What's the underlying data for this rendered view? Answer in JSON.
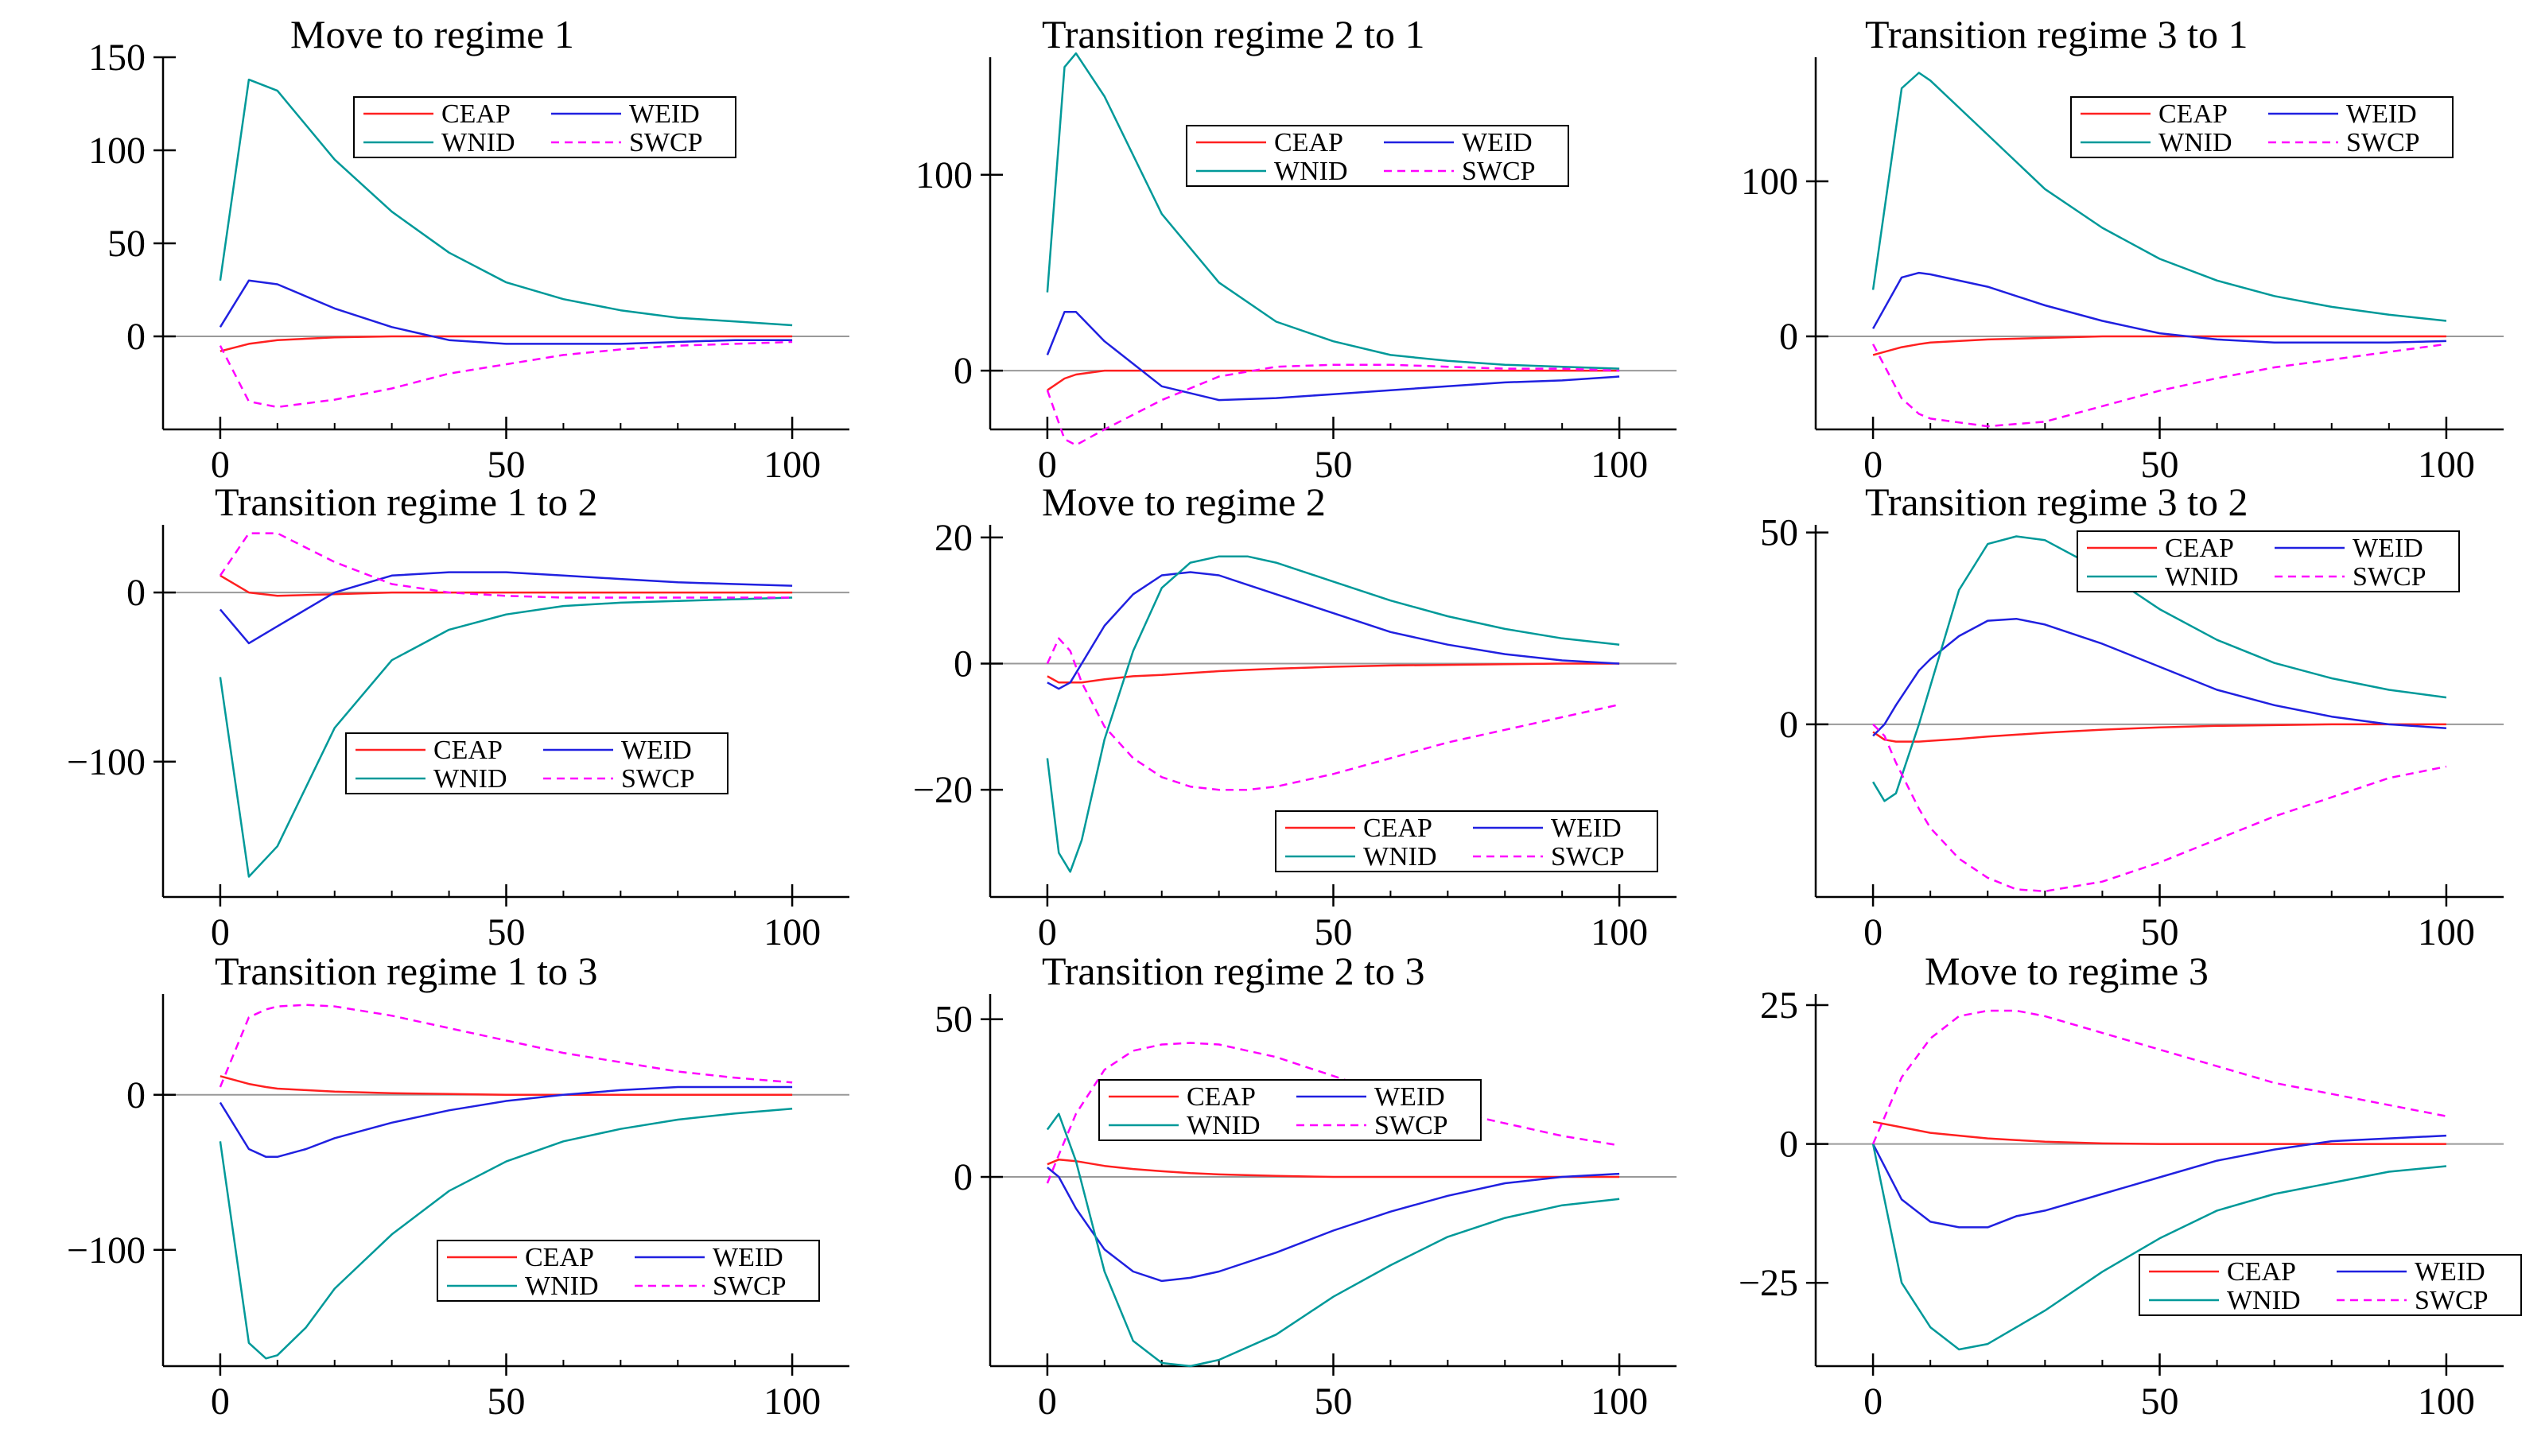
{
  "figure": {
    "description_title": "",
    "series_styles": [
      {
        "name": "CEAP",
        "color": "#ff2020",
        "dash": "solid"
      },
      {
        "name": "WEID",
        "color": "#2020e0",
        "dash": "solid"
      },
      {
        "name": "WNID",
        "color": "#009999",
        "dash": "solid"
      },
      {
        "name": "SWCP",
        "color": "#ff00ff",
        "dash": "dashed"
      }
    ]
  },
  "chart_data": [
    {
      "type": "line",
      "title": "Move to regime 1",
      "xlabel": "",
      "ylabel": "",
      "xlim": [
        -10,
        110
      ],
      "ylim": [
        -50,
        150
      ],
      "xticks": [
        0,
        50,
        100
      ],
      "yticks": [
        150,
        100,
        50,
        0
      ],
      "legend": "top-right",
      "x": [
        0,
        5,
        10,
        20,
        30,
        40,
        50,
        60,
        70,
        80,
        90,
        100
      ],
      "series": [
        {
          "name": "CEAP",
          "values": [
            -8,
            -4,
            -2,
            -0.5,
            0,
            0,
            0,
            0,
            0,
            0,
            0,
            0
          ]
        },
        {
          "name": "WEID",
          "values": [
            5,
            30,
            28,
            15,
            5,
            -2,
            -4,
            -4,
            -4,
            -3,
            -2,
            -2
          ]
        },
        {
          "name": "WNID",
          "values": [
            30,
            138,
            132,
            95,
            67,
            45,
            29,
            20,
            14,
            10,
            8,
            6
          ]
        },
        {
          "name": "SWCP",
          "values": [
            -5,
            -35,
            -38,
            -34,
            -28,
            -20,
            -15,
            -10,
            -7,
            -5,
            -4,
            -3
          ]
        }
      ]
    },
    {
      "type": "line",
      "title": "Transition regime 2 to 1",
      "xlabel": "",
      "ylabel": "",
      "xlim": [
        -10,
        110
      ],
      "ylim": [
        -30,
        160
      ],
      "xticks": [
        0,
        50,
        100
      ],
      "yticks": [
        100,
        0
      ],
      "legend": "top-right",
      "x": [
        0,
        3,
        5,
        10,
        20,
        30,
        40,
        50,
        60,
        70,
        80,
        90,
        100
      ],
      "series": [
        {
          "name": "CEAP",
          "values": [
            -10,
            -4,
            -2,
            0,
            0,
            0,
            0,
            0,
            0,
            0,
            0,
            0,
            0
          ]
        },
        {
          "name": "WEID",
          "values": [
            8,
            30,
            30,
            15,
            -8,
            -15,
            -14,
            -12,
            -10,
            -8,
            -6,
            -5,
            -3
          ]
        },
        {
          "name": "WNID",
          "values": [
            40,
            155,
            162,
            140,
            80,
            45,
            25,
            15,
            8,
            5,
            3,
            2,
            1
          ]
        },
        {
          "name": "SWCP",
          "values": [
            -10,
            -35,
            -38,
            -30,
            -15,
            -3,
            2,
            3,
            3,
            2,
            1,
            1,
            0
          ]
        }
      ]
    },
    {
      "type": "line",
      "title": "Transition regime 3 to 1",
      "xlabel": "",
      "ylabel": "",
      "xlim": [
        -10,
        110
      ],
      "ylim": [
        -60,
        180
      ],
      "xticks": [
        0,
        50,
        100
      ],
      "yticks": [
        100,
        0
      ],
      "legend": "top-right",
      "x": [
        0,
        5,
        8,
        10,
        20,
        30,
        40,
        50,
        60,
        70,
        80,
        90,
        100
      ],
      "series": [
        {
          "name": "CEAP",
          "values": [
            -12,
            -7,
            -5,
            -4,
            -2,
            -1,
            0,
            0,
            0,
            0,
            0,
            0,
            0
          ]
        },
        {
          "name": "WEID",
          "values": [
            5,
            38,
            41,
            40,
            32,
            20,
            10,
            2,
            -2,
            -4,
            -4,
            -4,
            -3
          ]
        },
        {
          "name": "WNID",
          "values": [
            30,
            160,
            170,
            165,
            130,
            95,
            70,
            50,
            36,
            26,
            19,
            14,
            10
          ]
        },
        {
          "name": "SWCP",
          "values": [
            -5,
            -40,
            -50,
            -53,
            -58,
            -55,
            -45,
            -35,
            -27,
            -20,
            -15,
            -10,
            -5
          ]
        }
      ]
    },
    {
      "type": "line",
      "title": "Transition regime 1 to 2",
      "xlabel": "",
      "ylabel": "",
      "xlim": [
        -10,
        110
      ],
      "ylim": [
        -180,
        40
      ],
      "xticks": [
        0,
        50,
        100
      ],
      "yticks": [
        0,
        -100
      ],
      "legend": "bottom-right",
      "x": [
        0,
        5,
        10,
        20,
        30,
        40,
        50,
        60,
        70,
        80,
        90,
        100
      ],
      "series": [
        {
          "name": "CEAP",
          "values": [
            10,
            0,
            -2,
            -1,
            0,
            0,
            0,
            0,
            0,
            0,
            0,
            0
          ]
        },
        {
          "name": "WEID",
          "values": [
            -10,
            -30,
            -20,
            0,
            10,
            12,
            12,
            10,
            8,
            6,
            5,
            4
          ]
        },
        {
          "name": "WNID",
          "values": [
            -50,
            -168,
            -150,
            -80,
            -40,
            -22,
            -13,
            -8,
            -6,
            -5,
            -4,
            -3
          ]
        },
        {
          "name": "SWCP",
          "values": [
            10,
            35,
            35,
            18,
            5,
            0,
            -2,
            -3,
            -3,
            -3,
            -3,
            -3
          ]
        }
      ]
    },
    {
      "type": "line",
      "title": "Move to regime 2",
      "xlabel": "",
      "ylabel": "",
      "xlim": [
        -10,
        110
      ],
      "ylim": [
        -37,
        22
      ],
      "xticks": [
        0,
        50,
        100
      ],
      "yticks": [
        20,
        0,
        -20
      ],
      "legend": "bottom-right",
      "x": [
        0,
        2,
        4,
        6,
        10,
        15,
        20,
        25,
        30,
        35,
        40,
        50,
        60,
        70,
        80,
        90,
        100
      ],
      "series": [
        {
          "name": "CEAP",
          "values": [
            -2,
            -3,
            -3,
            -3,
            -2.5,
            -2,
            -1.8,
            -1.5,
            -1.2,
            -1,
            -0.8,
            -0.5,
            -0.3,
            -0.2,
            -0.1,
            0,
            0
          ]
        },
        {
          "name": "WEID",
          "values": [
            -3,
            -4,
            -3,
            0,
            6,
            11,
            14,
            14.5,
            14,
            12.5,
            11,
            8,
            5,
            3,
            1.5,
            0.5,
            0
          ]
        },
        {
          "name": "WNID",
          "values": [
            -15,
            -30,
            -33,
            -28,
            -12,
            2,
            12,
            16,
            17,
            17,
            16,
            13,
            10,
            7.5,
            5.5,
            4,
            3
          ]
        },
        {
          "name": "SWCP",
          "values": [
            0,
            4,
            2,
            -3,
            -10,
            -15,
            -18,
            -19.5,
            -20,
            -20,
            -19.5,
            -17.5,
            -15,
            -12.5,
            -10.5,
            -8.5,
            -6.5
          ]
        }
      ]
    },
    {
      "type": "line",
      "title": "Transition regime 3 to 2",
      "xlabel": "",
      "ylabel": "",
      "xlim": [
        -10,
        110
      ],
      "ylim": [
        -45,
        52
      ],
      "xticks": [
        0,
        50,
        100
      ],
      "yticks": [
        50,
        0
      ],
      "legend": "top-right",
      "x": [
        0,
        2,
        4,
        8,
        10,
        15,
        20,
        25,
        30,
        40,
        50,
        60,
        70,
        80,
        90,
        100
      ],
      "series": [
        {
          "name": "CEAP",
          "values": [
            -2,
            -4,
            -4.5,
            -4.5,
            -4.3,
            -3.8,
            -3.2,
            -2.7,
            -2.2,
            -1.4,
            -0.8,
            -0.4,
            -0.2,
            0,
            0,
            0
          ]
        },
        {
          "name": "WEID",
          "values": [
            -3,
            0,
            5,
            14,
            17,
            23,
            27,
            27.5,
            26,
            21,
            15,
            9,
            5,
            2,
            0,
            -1
          ]
        },
        {
          "name": "WNID",
          "values": [
            -15,
            -20,
            -18,
            0,
            10,
            35,
            47,
            49,
            48,
            40,
            30,
            22,
            16,
            12,
            9,
            7
          ]
        },
        {
          "name": "SWCP",
          "values": [
            0,
            -3,
            -10,
            -22,
            -27,
            -35,
            -40,
            -43,
            -43.5,
            -41,
            -36,
            -30,
            -24,
            -19,
            -14,
            -11
          ]
        }
      ]
    },
    {
      "type": "line",
      "title": "Transition regime 1 to 3",
      "xlabel": "",
      "ylabel": "",
      "xlim": [
        -10,
        110
      ],
      "ylim": [
        -175,
        65
      ],
      "xticks": [
        0,
        50,
        100
      ],
      "yticks": [
        0,
        -100
      ],
      "legend": "bottom-right",
      "x": [
        0,
        5,
        8,
        10,
        15,
        20,
        30,
        40,
        50,
        60,
        70,
        80,
        90,
        100
      ],
      "series": [
        {
          "name": "CEAP",
          "values": [
            12,
            7,
            5,
            4,
            3,
            2,
            1,
            0.5,
            0,
            0,
            0,
            0,
            0,
            0
          ]
        },
        {
          "name": "WEID",
          "values": [
            -5,
            -35,
            -40,
            -40,
            -35,
            -28,
            -18,
            -10,
            -4,
            0,
            3,
            5,
            5,
            5
          ]
        },
        {
          "name": "WNID",
          "values": [
            -30,
            -160,
            -170,
            -168,
            -150,
            -125,
            -90,
            -62,
            -43,
            -30,
            -22,
            -16,
            -12,
            -9
          ]
        },
        {
          "name": "SWCP",
          "values": [
            5,
            50,
            55,
            57,
            58,
            57,
            51,
            43,
            35,
            27,
            21,
            15,
            11,
            8
          ]
        }
      ]
    },
    {
      "type": "line",
      "title": "Transition regime 2 to 3",
      "xlabel": "",
      "ylabel": "",
      "xlim": [
        -10,
        110
      ],
      "ylim": [
        -60,
        58
      ],
      "xticks": [
        0,
        50,
        100
      ],
      "yticks": [
        50,
        0
      ],
      "legend": "top-left",
      "x": [
        0,
        2,
        5,
        10,
        15,
        20,
        25,
        30,
        40,
        50,
        60,
        70,
        80,
        90,
        100
      ],
      "series": [
        {
          "name": "CEAP",
          "values": [
            4,
            5.5,
            5,
            3.5,
            2.5,
            1.8,
            1.2,
            0.8,
            0.3,
            0,
            0,
            0,
            0,
            0,
            0
          ]
        },
        {
          "name": "WEID",
          "values": [
            3,
            0,
            -10,
            -23,
            -30,
            -33,
            -32,
            -30,
            -24,
            -17,
            -11,
            -6,
            -2,
            0,
            1
          ]
        },
        {
          "name": "WNID",
          "values": [
            15,
            20,
            5,
            -30,
            -52,
            -59,
            -60,
            -58,
            -50,
            -38,
            -28,
            -19,
            -13,
            -9,
            -7
          ]
        },
        {
          "name": "SWCP",
          "values": [
            -2,
            7,
            20,
            34,
            40,
            42,
            42.5,
            42,
            38,
            32,
            26,
            21,
            17,
            13,
            10
          ]
        }
      ]
    },
    {
      "type": "line",
      "title": "Move to regime 3",
      "xlabel": "",
      "ylabel": "",
      "xlim": [
        -10,
        110
      ],
      "ylim": [
        -40,
        27
      ],
      "xticks": [
        0,
        50,
        100
      ],
      "yticks": [
        25,
        0,
        -25
      ],
      "legend": "bottom-right",
      "x": [
        0,
        5,
        10,
        15,
        20,
        25,
        30,
        40,
        50,
        60,
        70,
        80,
        90,
        100
      ],
      "series": [
        {
          "name": "CEAP",
          "values": [
            4,
            3,
            2,
            1.5,
            1,
            0.7,
            0.4,
            0.1,
            0,
            0,
            0,
            0,
            0,
            0
          ]
        },
        {
          "name": "WEID",
          "values": [
            0,
            -10,
            -14,
            -15,
            -15,
            -13,
            -12,
            -9,
            -6,
            -3,
            -1,
            0.5,
            1,
            1.5
          ]
        },
        {
          "name": "WNID",
          "values": [
            0,
            -25,
            -33,
            -37,
            -36,
            -33,
            -30,
            -23,
            -17,
            -12,
            -9,
            -7,
            -5,
            -4
          ]
        },
        {
          "name": "SWCP",
          "values": [
            0,
            12,
            19,
            23,
            24,
            24,
            23,
            20,
            17,
            14,
            11,
            9,
            7,
            5
          ]
        }
      ]
    }
  ]
}
